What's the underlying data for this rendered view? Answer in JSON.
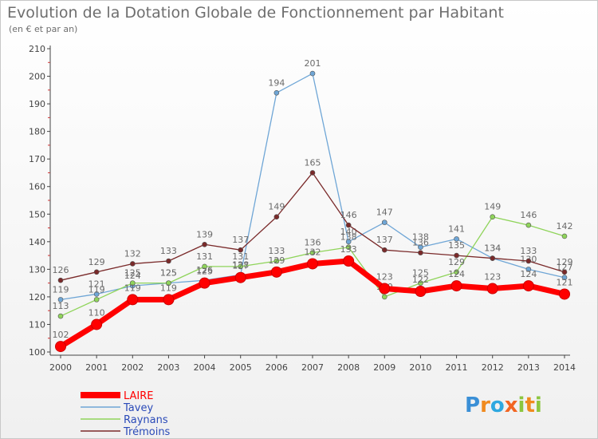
{
  "header": {
    "title": "Evolution de la Dotation Globale de Fonctionnement par Habitant",
    "subtitle": "(en € et par an)"
  },
  "brand": {
    "letters": [
      "P",
      "r",
      "o",
      "x",
      "i",
      "t",
      "i"
    ],
    "colors": [
      "#3a8fd6",
      "#f08a1e",
      "#2ea8e0",
      "#f26522",
      "#8cc63f",
      "#f08a1e",
      "#8cc63f"
    ]
  },
  "chart_data": {
    "type": "line",
    "x": [
      2000,
      2001,
      2002,
      2003,
      2004,
      2005,
      2006,
      2007,
      2008,
      2009,
      2010,
      2011,
      2012,
      2013,
      2014
    ],
    "ylim": [
      100,
      210
    ],
    "yticks": [
      100,
      110,
      120,
      130,
      140,
      150,
      160,
      170,
      180,
      190,
      200,
      210
    ],
    "grid": false,
    "legend_position": "bottom-left",
    "series": [
      {
        "name": "LAIRE",
        "color": "#ff0000",
        "values": [
          102,
          110,
          119,
          119,
          125,
          127,
          129,
          132,
          133,
          123,
          122,
          124,
          123,
          124,
          121
        ]
      },
      {
        "name": "Tavey",
        "color": "#6fa6d6",
        "values": [
          119,
          121,
          124,
          125,
          126,
          128,
          194,
          201,
          140,
          147,
          138,
          141,
          134,
          130,
          127
        ]
      },
      {
        "name": "Raynans",
        "color": "#8fd45a",
        "values": [
          113,
          119,
          125,
          125,
          131,
          131,
          133,
          136,
          138,
          120,
          125,
          129,
          149,
          146,
          142
        ]
      },
      {
        "name": "Trémoins",
        "color": "#7a2a2a",
        "values": [
          126,
          129,
          132,
          133,
          139,
          137,
          149,
          165,
          146,
          137,
          136,
          135,
          134,
          133,
          129
        ]
      }
    ]
  }
}
